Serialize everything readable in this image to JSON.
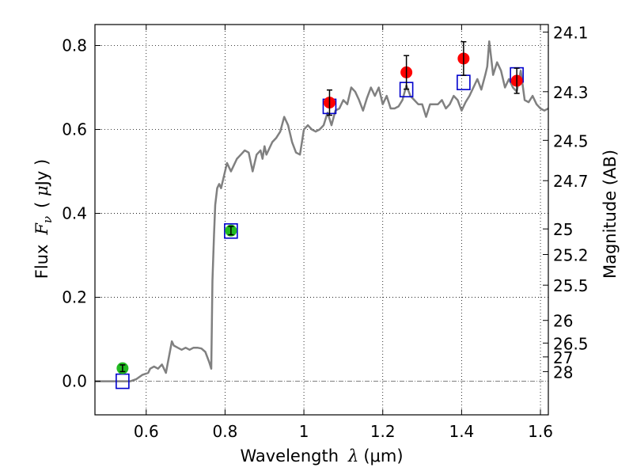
{
  "chart_data": {
    "type": "scatter",
    "xlabel": "Wavelength  λ (μm)",
    "ylabel": "Flux  Fν  ( μJy )",
    "ylabel_parts": {
      "prefix": "Flux",
      "var": "F",
      "sub": "ν",
      "unit_open": "( ",
      "unit_mu": "μ",
      "unit_rest": "Jy )"
    },
    "xlabel_parts": {
      "prefix": "Wavelength",
      "var": "λ",
      "unit": "(μm)"
    },
    "right_ylabel": "Magnitude (AB)",
    "xlim": [
      0.47,
      1.62
    ],
    "ylim": [
      -0.08,
      0.85
    ],
    "x_ticks": [
      0.6,
      0.8,
      1.0,
      1.2,
      1.4,
      1.6
    ],
    "x_tick_labels": [
      "0.6",
      "0.8",
      "1",
      "1.2",
      "1.4",
      "1.6"
    ],
    "y_ticks": [
      0.0,
      0.2,
      0.4,
      0.6,
      0.8
    ],
    "y_tick_labels": [
      "0.0",
      "0.2",
      "0.4",
      "0.6",
      "0.8"
    ],
    "right_ticks": [
      {
        "flux": 0.832,
        "label": "24.1"
      },
      {
        "flux": 0.69,
        "label": "24.3"
      },
      {
        "flux": 0.574,
        "label": "24.5"
      },
      {
        "flux": 0.478,
        "label": "24.7"
      },
      {
        "flux": 0.363,
        "label": "25"
      },
      {
        "flux": 0.302,
        "label": "25.2"
      },
      {
        "flux": 0.229,
        "label": "25.5"
      },
      {
        "flux": 0.145,
        "label": "26"
      },
      {
        "flux": 0.091,
        "label": "26.5"
      },
      {
        "flux": 0.058,
        "label": "27"
      },
      {
        "flux": 0.023,
        "label": "28"
      }
    ],
    "grid": true,
    "zero_line": true,
    "series": [
      {
        "name": "model spectrum",
        "kind": "line",
        "color": "#808080",
        "x": [
          0.47,
          0.525,
          0.56,
          0.575,
          0.59,
          0.605,
          0.61,
          0.62,
          0.63,
          0.64,
          0.65,
          0.66,
          0.665,
          0.67,
          0.68,
          0.69,
          0.7,
          0.71,
          0.72,
          0.73,
          0.74,
          0.75,
          0.76,
          0.765,
          0.768,
          0.772,
          0.775,
          0.78,
          0.785,
          0.79,
          0.795,
          0.8,
          0.805,
          0.81,
          0.815,
          0.82,
          0.83,
          0.84,
          0.85,
          0.86,
          0.87,
          0.88,
          0.89,
          0.895,
          0.9,
          0.905,
          0.91,
          0.92,
          0.93,
          0.94,
          0.95,
          0.96,
          0.97,
          0.98,
          0.99,
          1.0,
          1.01,
          1.02,
          1.03,
          1.04,
          1.05,
          1.06,
          1.07,
          1.08,
          1.09,
          1.1,
          1.11,
          1.12,
          1.13,
          1.14,
          1.15,
          1.16,
          1.17,
          1.18,
          1.19,
          1.2,
          1.21,
          1.22,
          1.23,
          1.24,
          1.25,
          1.26,
          1.27,
          1.28,
          1.29,
          1.3,
          1.31,
          1.32,
          1.33,
          1.34,
          1.35,
          1.36,
          1.37,
          1.38,
          1.39,
          1.4,
          1.41,
          1.42,
          1.43,
          1.44,
          1.45,
          1.46,
          1.465,
          1.47,
          1.475,
          1.48,
          1.49,
          1.5,
          1.51,
          1.52,
          1.53,
          1.54,
          1.55,
          1.56,
          1.57,
          1.58,
          1.59,
          1.6,
          1.61,
          1.62
        ],
        "y": [
          0.0,
          0.0,
          0.0,
          0.005,
          0.015,
          0.02,
          0.03,
          0.035,
          0.03,
          0.04,
          0.02,
          0.07,
          0.095,
          0.085,
          0.08,
          0.075,
          0.08,
          0.075,
          0.08,
          0.08,
          0.078,
          0.07,
          0.045,
          0.03,
          0.24,
          0.35,
          0.42,
          0.46,
          0.47,
          0.46,
          0.48,
          0.5,
          0.52,
          0.51,
          0.5,
          0.51,
          0.53,
          0.54,
          0.55,
          0.545,
          0.5,
          0.54,
          0.55,
          0.53,
          0.56,
          0.54,
          0.55,
          0.57,
          0.58,
          0.595,
          0.63,
          0.61,
          0.57,
          0.545,
          0.54,
          0.6,
          0.61,
          0.6,
          0.595,
          0.6,
          0.61,
          0.64,
          0.61,
          0.645,
          0.65,
          0.67,
          0.66,
          0.7,
          0.69,
          0.67,
          0.645,
          0.675,
          0.7,
          0.68,
          0.7,
          0.66,
          0.68,
          0.65,
          0.65,
          0.655,
          0.67,
          0.705,
          0.68,
          0.67,
          0.66,
          0.66,
          0.63,
          0.66,
          0.66,
          0.66,
          0.67,
          0.65,
          0.66,
          0.68,
          0.67,
          0.645,
          0.665,
          0.68,
          0.7,
          0.72,
          0.695,
          0.73,
          0.75,
          0.81,
          0.77,
          0.73,
          0.76,
          0.74,
          0.7,
          0.72,
          0.7,
          0.69,
          0.74,
          0.67,
          0.665,
          0.68,
          0.66,
          0.65,
          0.645,
          0.65
        ]
      },
      {
        "name": "photometry (red)",
        "kind": "points",
        "color": "#ff0000",
        "x": [
          1.065,
          1.26,
          1.405,
          1.54
        ],
        "y": [
          0.664,
          0.736,
          0.769,
          0.716
        ],
        "yerr": [
          0.03,
          0.04,
          0.04,
          0.03
        ]
      },
      {
        "name": "photometry (green)",
        "kind": "points",
        "color": "#22bb22",
        "x": [
          0.54,
          0.815
        ],
        "y": [
          0.031,
          0.359
        ],
        "yerr": [
          0.008,
          0.01
        ]
      },
      {
        "name": "model magnitudes",
        "kind": "squares",
        "color": "#0000cc",
        "x": [
          0.54,
          0.815,
          1.065,
          1.26,
          1.405,
          1.54
        ],
        "y": [
          0.0,
          0.358,
          0.655,
          0.695,
          0.712,
          0.73
        ]
      }
    ]
  }
}
